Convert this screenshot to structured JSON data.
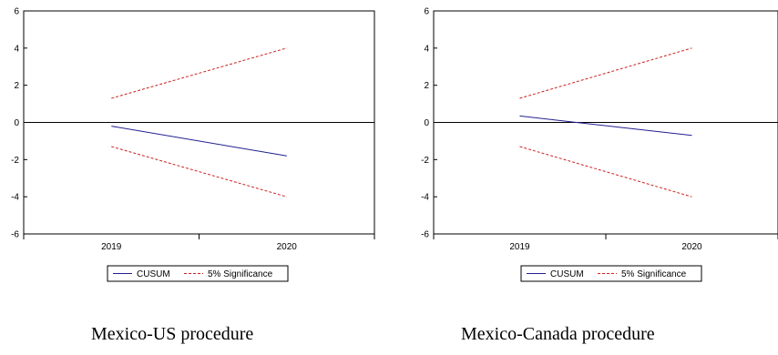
{
  "chart_data": [
    {
      "type": "line",
      "title": "",
      "xlabel": "",
      "ylabel": "",
      "caption": "Mexico-US procedure",
      "x_ticks": [
        "2019",
        "2020"
      ],
      "y_ticks": [
        "6",
        "4",
        "2",
        "0",
        "-2",
        "-4",
        "-6"
      ],
      "ylim": [
        -6,
        6
      ],
      "x": [
        2019,
        2020
      ],
      "grid": false,
      "legend_position": "bottom",
      "series": [
        {
          "name": "CUSUM",
          "color": "#1f1f8f",
          "style": "solid",
          "values": [
            -0.2,
            -1.8
          ]
        },
        {
          "name": "5% Significance",
          "color": "#cc2222",
          "style": "dashed",
          "values": [
            1.3,
            4.0
          ]
        },
        {
          "name": "",
          "color": "#cc2222",
          "style": "dashed",
          "values": [
            -1.3,
            -4.0
          ]
        }
      ]
    },
    {
      "type": "line",
      "title": "",
      "xlabel": "",
      "ylabel": "",
      "caption": "Mexico-Canada procedure",
      "x_ticks": [
        "2019",
        "2020"
      ],
      "y_ticks": [
        "6",
        "4",
        "2",
        "0",
        "-2",
        "-4",
        "-6"
      ],
      "ylim": [
        -6,
        6
      ],
      "x": [
        2019,
        2020
      ],
      "grid": false,
      "legend_position": "bottom",
      "series": [
        {
          "name": "CUSUM",
          "color": "#1f1f8f",
          "style": "solid",
          "values": [
            0.35,
            -0.7
          ]
        },
        {
          "name": "5% Significance",
          "color": "#cc2222",
          "style": "dashed",
          "values": [
            1.3,
            4.0
          ]
        },
        {
          "name": "",
          "color": "#cc2222",
          "style": "dashed",
          "values": [
            -1.3,
            -4.0
          ]
        }
      ]
    }
  ]
}
